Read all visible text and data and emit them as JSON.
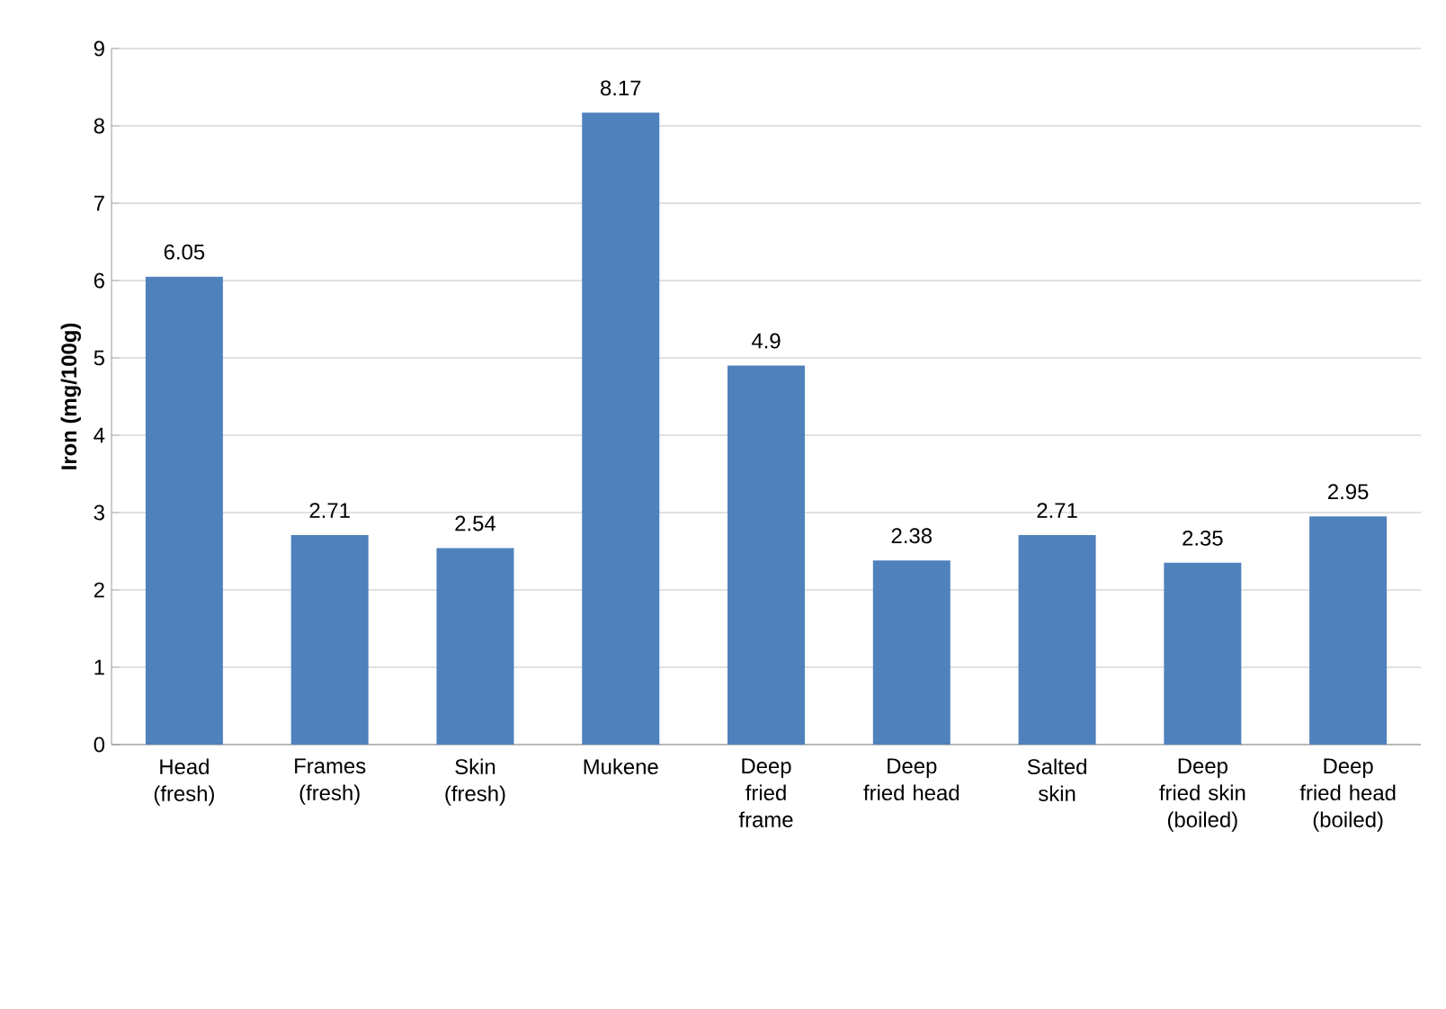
{
  "chart_data": {
    "type": "bar",
    "ylabel": "Iron (mg/100g)",
    "categories": [
      "Head (fresh)",
      "Frames (fresh)",
      "Skin (fresh)",
      "Mukene",
      "Deep fried frame",
      "Deep fried head",
      "Salted skin",
      "Deep fried skin (boiled)",
      "Deep fried head (boiled)"
    ],
    "values": [
      6.05,
      2.71,
      2.54,
      8.17,
      4.9,
      2.38,
      2.71,
      2.35,
      2.95
    ],
    "color": "#4f81bd",
    "ylim": [
      0,
      9
    ],
    "yticks": [
      0,
      1,
      2,
      3,
      4,
      5,
      6,
      7,
      8,
      9
    ],
    "grid": "y",
    "data_labels": true
  }
}
